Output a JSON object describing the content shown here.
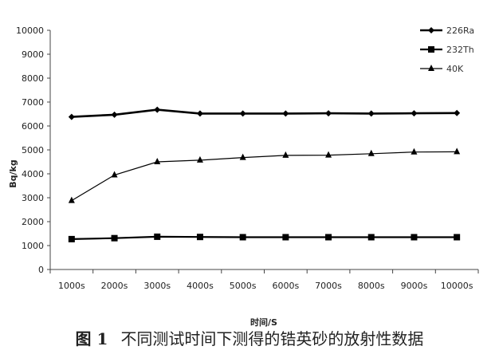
{
  "chart_data": {
    "type": "line",
    "categories": [
      "1000s",
      "2000s",
      "3000s",
      "4000s",
      "5000s",
      "6000s",
      "7000s",
      "8000s",
      "9000s",
      "10000s"
    ],
    "xlabel": "时间/S",
    "ylabel": "Bq/kg",
    "ylim": [
      0,
      10000
    ],
    "yticks": [
      0,
      1000,
      2000,
      3000,
      4000,
      5000,
      6000,
      7000,
      8000,
      9000,
      10000
    ],
    "grid": false,
    "legend_position": "top-right",
    "series": [
      {
        "name": "226Ra",
        "marker": "diamond",
        "values": [
          6380,
          6470,
          6680,
          6520,
          6520,
          6520,
          6530,
          6520,
          6530,
          6540
        ]
      },
      {
        "name": "232Th",
        "marker": "square",
        "values": [
          1270,
          1310,
          1370,
          1360,
          1350,
          1350,
          1350,
          1350,
          1350,
          1350
        ]
      },
      {
        "name": "40K",
        "marker": "triangle",
        "values": [
          2880,
          3950,
          4500,
          4570,
          4680,
          4770,
          4780,
          4840,
          4910,
          4920
        ]
      }
    ]
  },
  "caption": {
    "number": "图 1",
    "text": "不同测试时间下测得的锆英砂的放射性数据"
  },
  "colors": {
    "line": "#000000",
    "axis": "#444444"
  }
}
